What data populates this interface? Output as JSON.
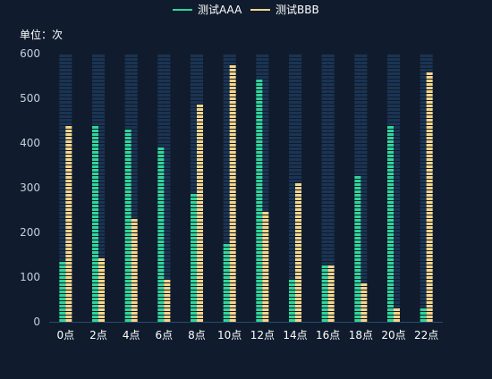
{
  "chart_data": {
    "type": "bar",
    "unit_label": "单位：次",
    "categories": [
      "0点",
      "2点",
      "4点",
      "6点",
      "8点",
      "10点",
      "12点",
      "14点",
      "16点",
      "18点",
      "20点",
      "22点"
    ],
    "series": [
      {
        "name": "测试AAA",
        "color": "#2fd69b",
        "values": [
          140,
          440,
          430,
          395,
          285,
          180,
          545,
          100,
          125,
          330,
          440,
          35
        ]
      },
      {
        "name": "测试BBB",
        "color": "#f6d58c",
        "values": [
          440,
          145,
          235,
          100,
          485,
          580,
          250,
          315,
          125,
          90,
          35,
          560
        ]
      }
    ],
    "ylim": [
      0,
      600
    ],
    "yticks": [
      0,
      100,
      200,
      300,
      400,
      500,
      600
    ],
    "legend_position": "top-center",
    "background_bar_color": "#1b3453",
    "axis_color": "#2b4a6c",
    "text_color": "#c5cfdb"
  }
}
